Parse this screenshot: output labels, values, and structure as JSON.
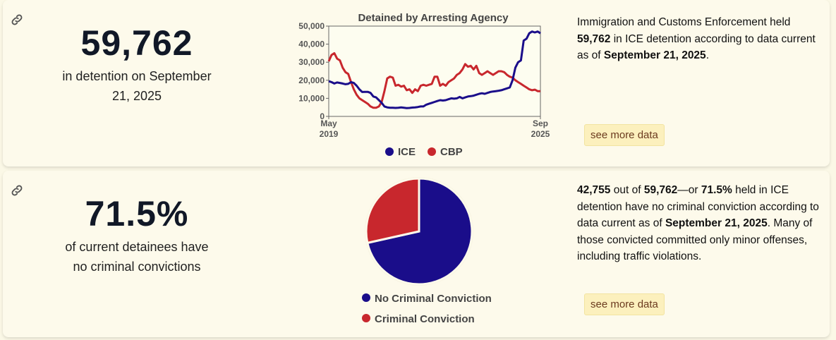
{
  "card1": {
    "stat": "59,762",
    "caption": "in detention on September 21, 2025",
    "description": [
      {
        "text": "Immigration and Customs Enforcement held ",
        "bold": false
      },
      {
        "text": "59,762",
        "bold": true
      },
      {
        "text": " in ICE detention according to data current as of ",
        "bold": false
      },
      {
        "text": "September 21, 2025",
        "bold": true
      },
      {
        "text": ".",
        "bold": false
      }
    ],
    "see_more_label": "see more data"
  },
  "card2": {
    "stat": "71.5%",
    "caption": "of current detainees have no criminal convictions",
    "description": [
      {
        "text": "42,755",
        "bold": true
      },
      {
        "text": " out of ",
        "bold": false
      },
      {
        "text": "59,762",
        "bold": true
      },
      {
        "text": "—or ",
        "bold": false
      },
      {
        "text": "71.5%",
        "bold": true
      },
      {
        "text": " held in ICE detention have no criminal conviction according to data current as of ",
        "bold": false
      },
      {
        "text": "September 21, 2025",
        "bold": true
      },
      {
        "text": ". Many of those convicted committed only minor offenses, including traffic violations.",
        "bold": false
      }
    ],
    "see_more_label": "see more data"
  },
  "colors": {
    "ice": "#1a0d8a",
    "cbp": "#c8272d",
    "background": "#fdfaeb"
  },
  "icons": {
    "permalink": "link-icon"
  },
  "chart_data": [
    {
      "type": "line",
      "title": "Detained by Arresting Agency",
      "ylim": [
        0,
        50000
      ],
      "yticks": [
        "0",
        "10,000",
        "20,000",
        "30,000",
        "40,000",
        "50,000"
      ],
      "xticks": [
        {
          "line1": "May",
          "line2": "2019"
        },
        {
          "line1": "Sep",
          "line2": "2025"
        }
      ],
      "xlim": [
        "2019-05",
        "2025-09"
      ],
      "grid": false,
      "legend": "bottom",
      "series": [
        {
          "name": "ICE",
          "x": [
            "2019-05",
            "2019-06",
            "2019-07",
            "2019-08",
            "2019-09",
            "2019-10",
            "2019-11",
            "2019-12",
            "2020-01",
            "2020-02",
            "2020-03",
            "2020-04",
            "2020-05",
            "2020-06",
            "2020-07",
            "2020-08",
            "2020-09",
            "2020-10",
            "2020-11",
            "2020-12",
            "2021-01",
            "2021-02",
            "2021-03",
            "2021-04",
            "2021-05",
            "2021-06",
            "2021-07",
            "2021-08",
            "2021-09",
            "2021-10",
            "2021-11",
            "2021-12",
            "2022-01",
            "2022-02",
            "2022-03",
            "2022-04",
            "2022-05",
            "2022-06",
            "2022-07",
            "2022-08",
            "2022-09",
            "2022-10",
            "2022-11",
            "2022-12",
            "2023-01",
            "2023-02",
            "2023-03",
            "2023-04",
            "2023-05",
            "2023-06",
            "2023-07",
            "2023-08",
            "2023-09",
            "2023-10",
            "2023-11",
            "2023-12",
            "2024-01",
            "2024-02",
            "2024-03",
            "2024-04",
            "2024-05",
            "2024-06",
            "2024-07",
            "2024-08",
            "2024-09",
            "2024-10",
            "2024-11",
            "2024-12",
            "2025-01",
            "2025-02",
            "2025-03",
            "2025-04",
            "2025-05",
            "2025-06",
            "2025-07",
            "2025-08",
            "2025-09"
          ],
          "values": [
            19500,
            19000,
            18200,
            18800,
            18500,
            18200,
            17800,
            18000,
            19000,
            18500,
            17000,
            15000,
            13500,
            13600,
            13600,
            13000,
            11000,
            10500,
            9000,
            7500,
            5500,
            5000,
            4800,
            4800,
            4700,
            4800,
            5000,
            4800,
            4600,
            4700,
            4900,
            5000,
            5200,
            5500,
            5500,
            6500,
            7000,
            7500,
            8000,
            8500,
            9000,
            8800,
            9000,
            9500,
            10000,
            9800,
            10000,
            10800,
            10000,
            10500,
            11000,
            11200,
            11500,
            12000,
            12500,
            12800,
            12500,
            13000,
            13500,
            13800,
            14000,
            14200,
            14500,
            15000,
            15500,
            16000,
            20000,
            27000,
            30000,
            31000,
            42000,
            43000,
            46000,
            47000,
            46500,
            47000,
            46000
          ]
        },
        {
          "name": "CBP",
          "x": [
            "2019-05",
            "2019-06",
            "2019-07",
            "2019-08",
            "2019-09",
            "2019-10",
            "2019-11",
            "2019-12",
            "2020-01",
            "2020-02",
            "2020-03",
            "2020-04",
            "2020-05",
            "2020-06",
            "2020-07",
            "2020-08",
            "2020-09",
            "2020-10",
            "2020-11",
            "2020-12",
            "2021-01",
            "2021-02",
            "2021-03",
            "2021-04",
            "2021-05",
            "2021-06",
            "2021-07",
            "2021-08",
            "2021-09",
            "2021-10",
            "2021-11",
            "2021-12",
            "2022-01",
            "2022-02",
            "2022-03",
            "2022-04",
            "2022-05",
            "2022-06",
            "2022-07",
            "2022-08",
            "2022-09",
            "2022-10",
            "2022-11",
            "2022-12",
            "2023-01",
            "2023-02",
            "2023-03",
            "2023-04",
            "2023-05",
            "2023-06",
            "2023-07",
            "2023-08",
            "2023-09",
            "2023-10",
            "2023-11",
            "2023-12",
            "2024-01",
            "2024-02",
            "2024-03",
            "2024-04",
            "2024-05",
            "2024-06",
            "2024-07",
            "2024-08",
            "2024-09",
            "2024-10",
            "2024-11",
            "2024-12",
            "2025-01",
            "2025-02",
            "2025-03",
            "2025-04",
            "2025-05",
            "2025-06",
            "2025-07",
            "2025-08",
            "2025-09"
          ],
          "values": [
            30500,
            34000,
            35000,
            32000,
            31000,
            27000,
            24500,
            23500,
            19000,
            15000,
            12000,
            10000,
            9000,
            8000,
            7000,
            5500,
            4800,
            4800,
            5500,
            8000,
            14000,
            21000,
            22000,
            21500,
            17000,
            17500,
            16500,
            17000,
            14500,
            15000,
            13000,
            15000,
            14000,
            17000,
            17500,
            17000,
            17500,
            18000,
            22000,
            22000,
            17000,
            18000,
            17000,
            19000,
            20000,
            21000,
            23000,
            24000,
            26000,
            29000,
            27500,
            28000,
            26000,
            28000,
            24000,
            23000,
            24000,
            25000,
            24000,
            23000,
            24000,
            25000,
            25000,
            24500,
            23000,
            22000,
            21500,
            20000,
            19000,
            18000,
            17000,
            16000,
            15000,
            14500,
            14800,
            14000,
            14000
          ]
        }
      ]
    },
    {
      "type": "pie",
      "series": [
        {
          "name": "No Criminal Conviction",
          "value": 71.5
        },
        {
          "name": "Criminal Conviction",
          "value": 28.5
        }
      ],
      "legend": "bottom"
    }
  ]
}
